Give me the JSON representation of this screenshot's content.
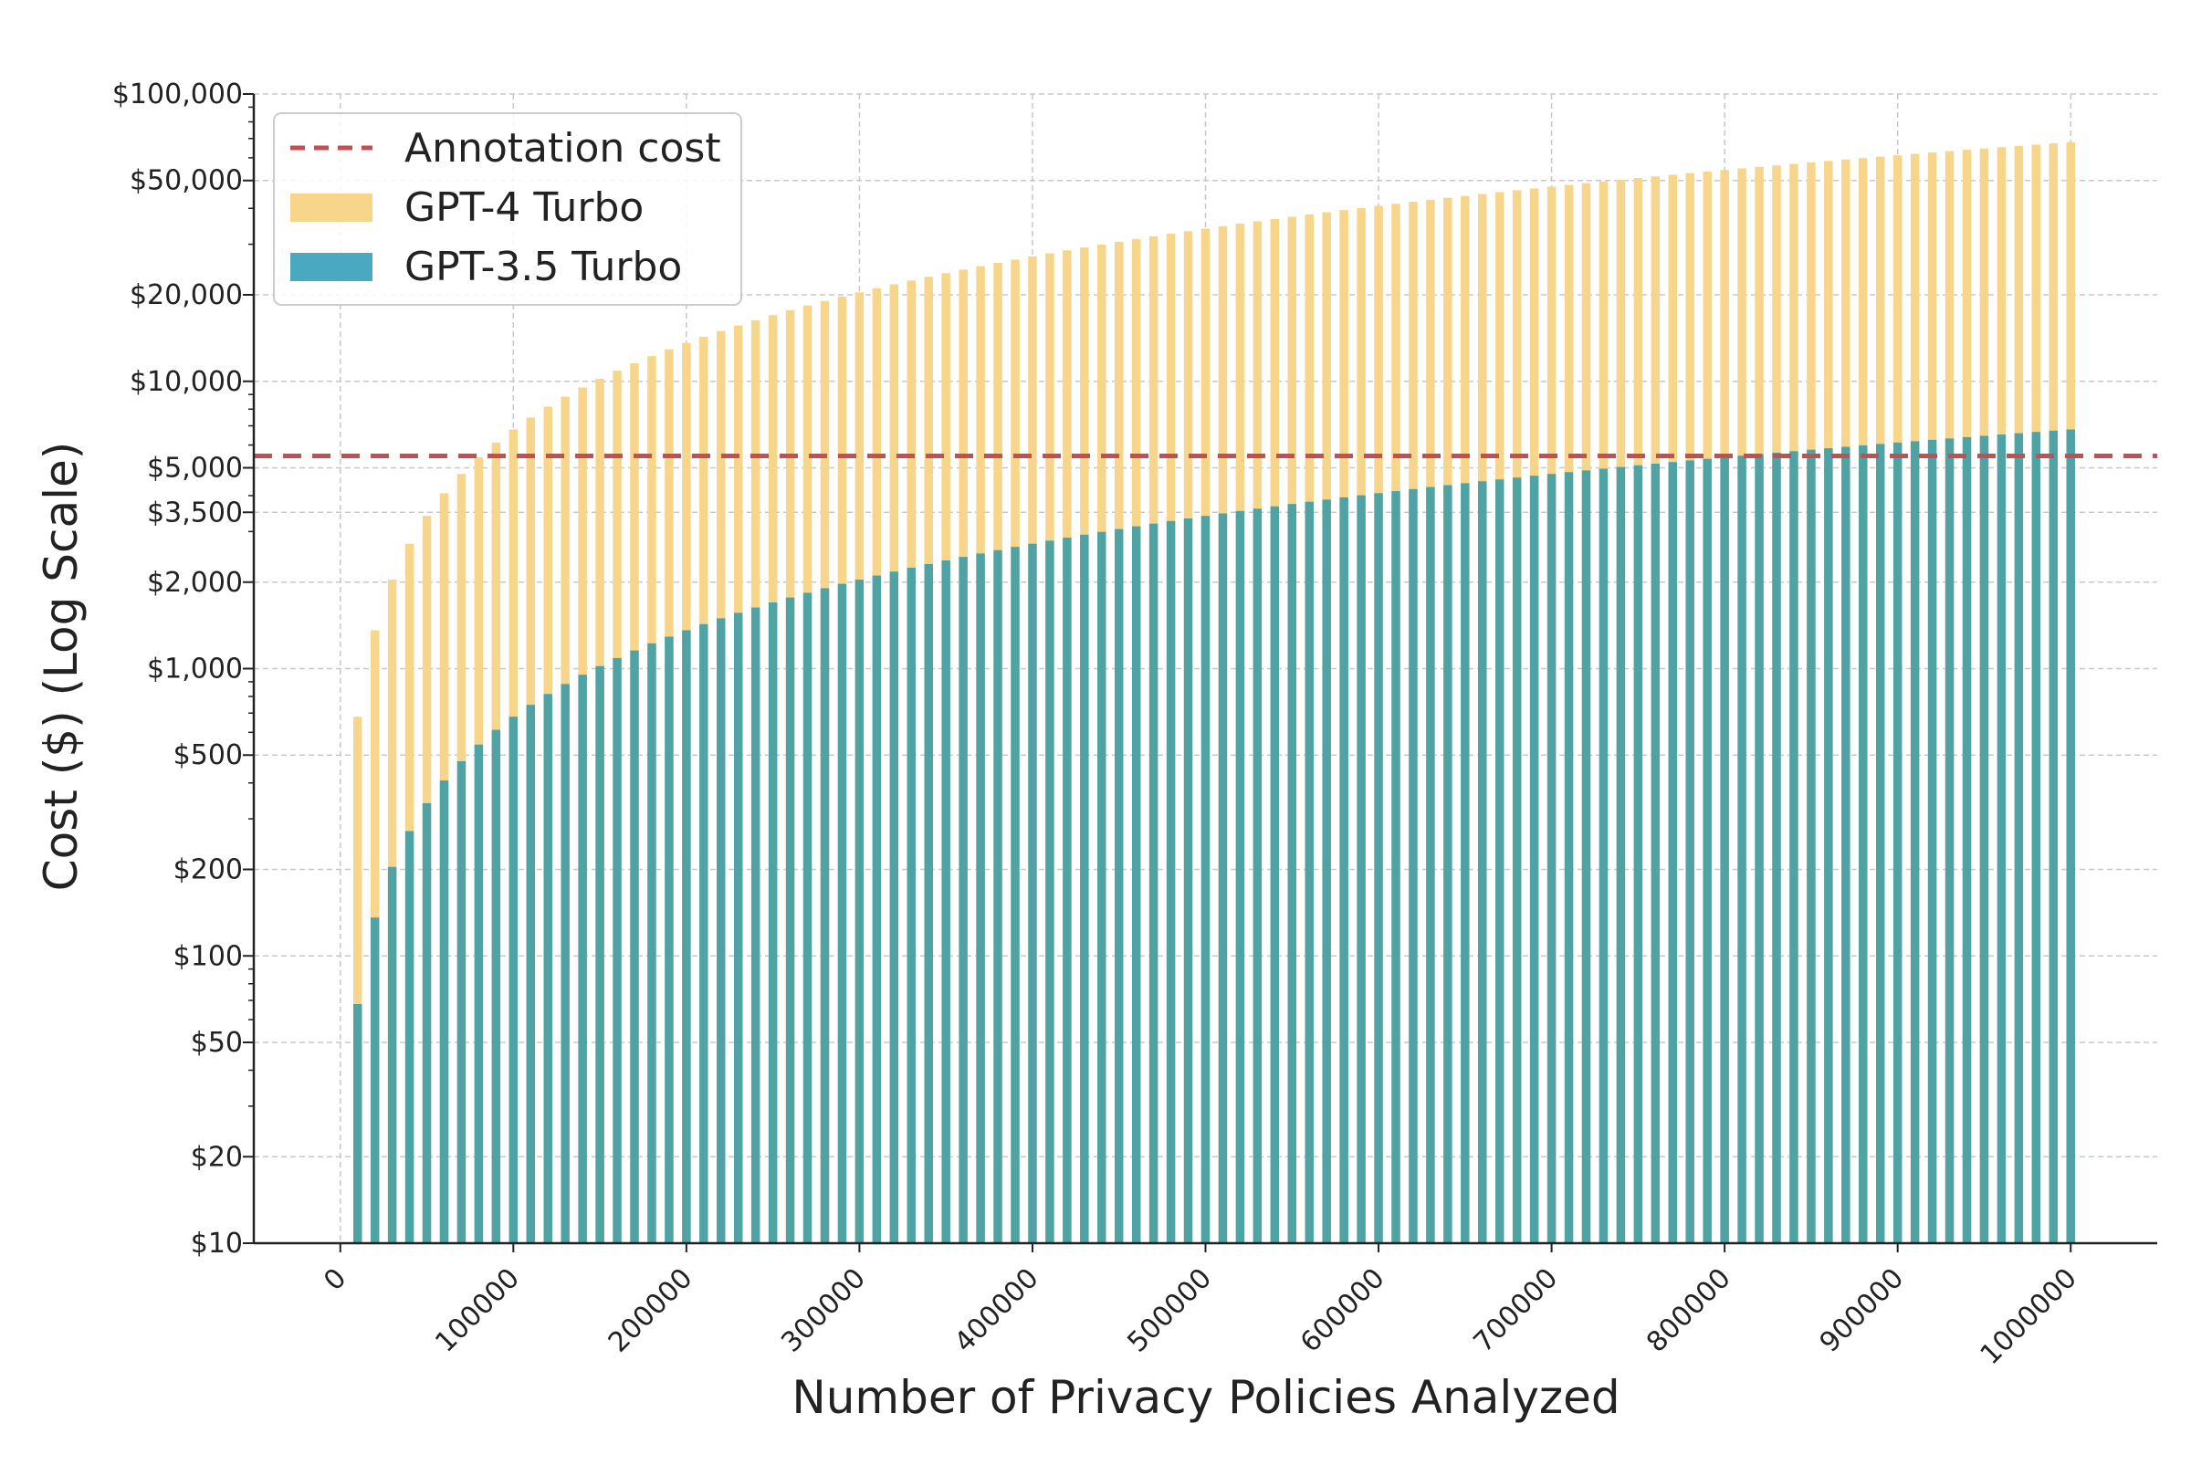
{
  "chart_data": {
    "type": "bar",
    "title": "",
    "xlabel": "Number of Privacy Policies Analyzed",
    "ylabel": "Cost ($) (Log Scale)",
    "yscale": "log",
    "ylim": [
      10,
      100000
    ],
    "xlim": [
      -50000,
      1050000
    ],
    "grid": true,
    "legend_position": "top-left",
    "x_step": 10000,
    "x_count": 100,
    "x_start": 10000,
    "x_end": 1000000,
    "x_ticks": [
      0,
      100000,
      200000,
      300000,
      400000,
      500000,
      600000,
      700000,
      800000,
      900000,
      1000000
    ],
    "x_tick_labels": [
      "0",
      "100000",
      "200000",
      "300000",
      "400000",
      "500000",
      "600000",
      "700000",
      "800000",
      "900000",
      "1000000"
    ],
    "y_ticks": [
      10,
      20,
      50,
      100,
      200,
      500,
      1000,
      2000,
      3500,
      5000,
      10000,
      20000,
      50000,
      100000
    ],
    "y_tick_labels": [
      "$10",
      "$20",
      "$50",
      "$100",
      "$200",
      "$500",
      "$1,000",
      "$2,000",
      "$3,500",
      "$5,000",
      "$10,000",
      "$20,000",
      "$50,000",
      "$100,000"
    ],
    "series": [
      {
        "name": "GPT-4 Turbo",
        "color": "#f7d58a",
        "cost_per_policy": 0.068
      },
      {
        "name": "GPT-3.5 Turbo",
        "color": "#4fa3a5",
        "cost_per_policy": 0.0068
      }
    ],
    "annotation": {
      "name": "Annotation cost",
      "value": 5500,
      "color": "#c44e52",
      "style": "dashed"
    },
    "legend": [
      {
        "label": "Annotation cost",
        "kind": "line",
        "color": "#c44e52"
      },
      {
        "label": "GPT-4 Turbo",
        "kind": "patch",
        "color": "#f7d58a"
      },
      {
        "label": "GPT-3.5 Turbo",
        "kind": "patch",
        "color": "#4aa9c1"
      }
    ]
  }
}
